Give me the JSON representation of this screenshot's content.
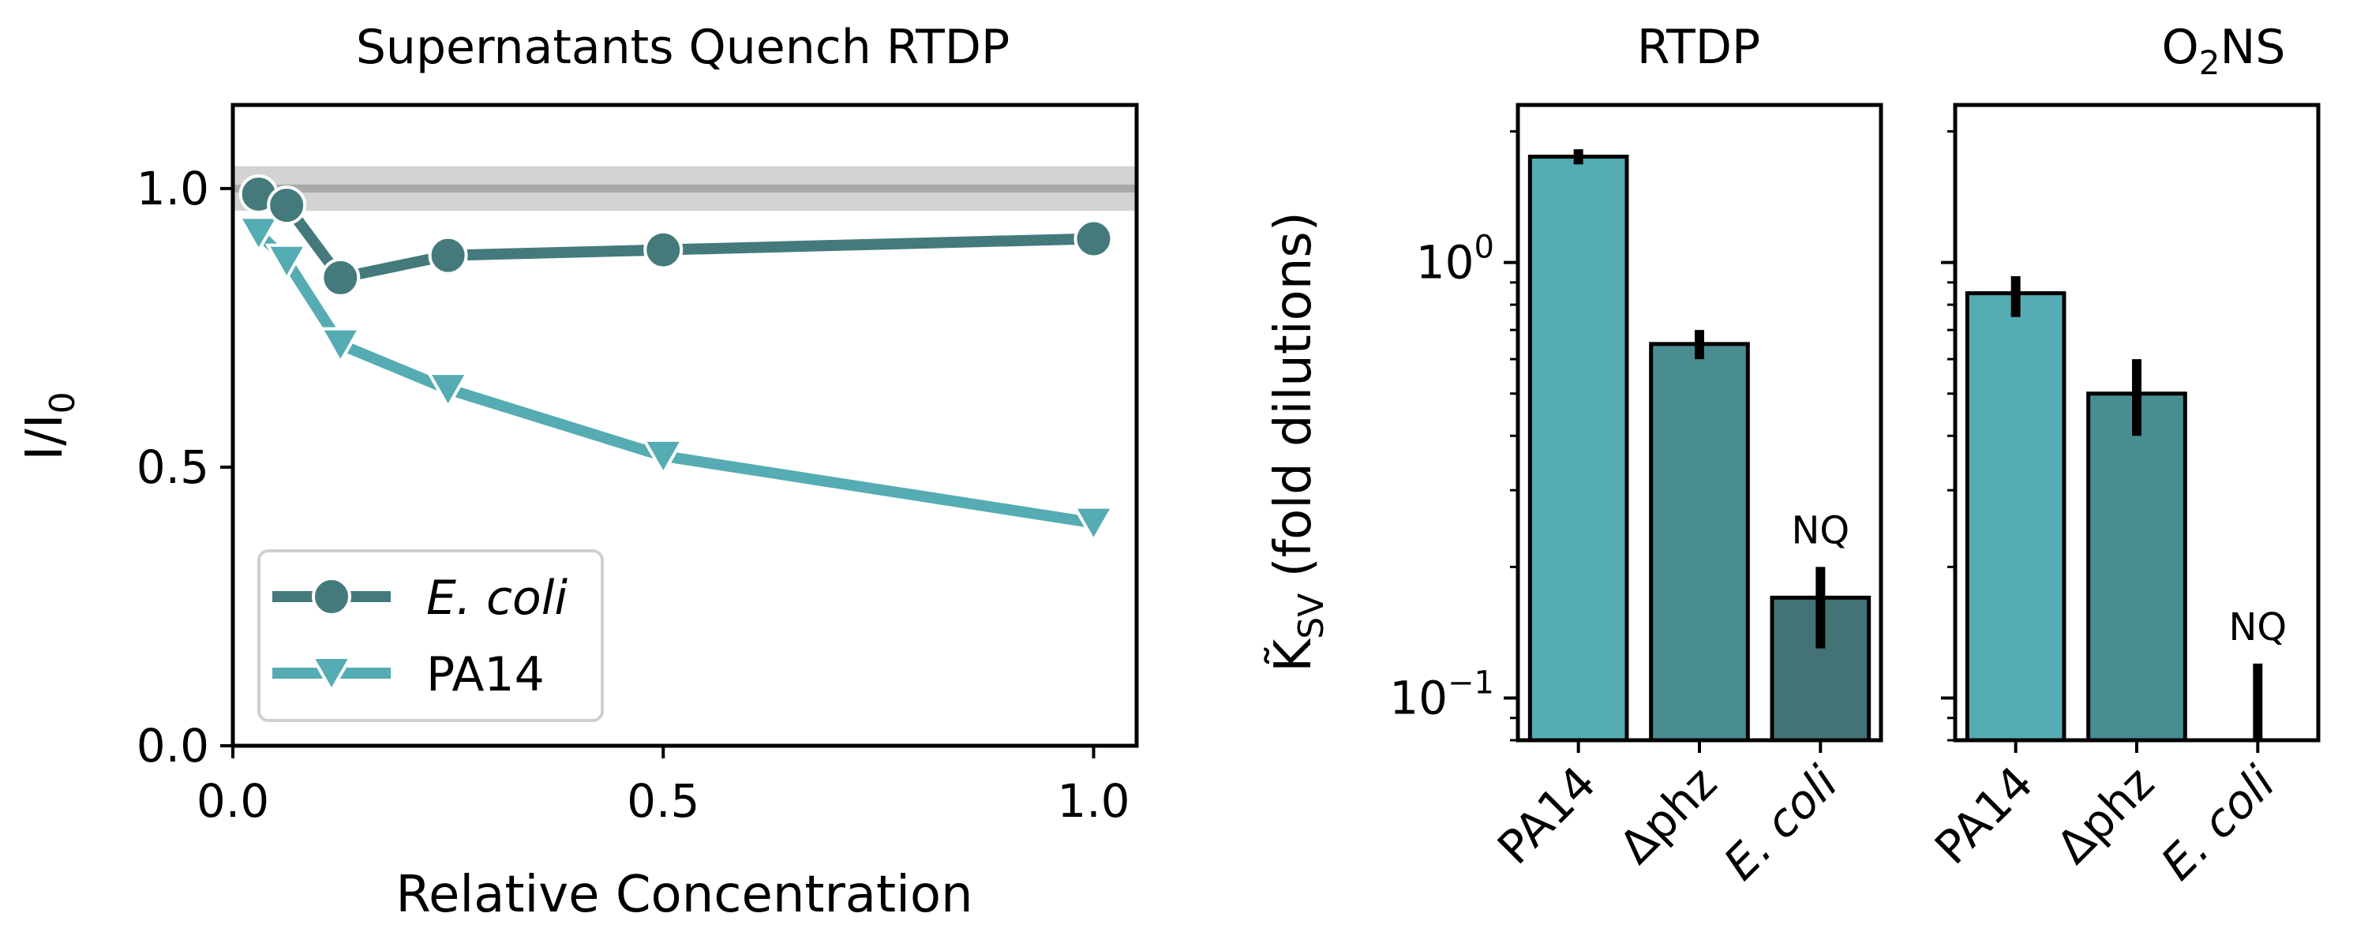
{
  "colors": {
    "ecoli_line": "#447a7c",
    "pa14_line": "#55acb2",
    "bar_pa14": "#55acb2",
    "bar_dphz": "#4a8d91",
    "bar_ecoli": "#437375",
    "reference_band": "#d3d3d3",
    "reference_line": "#a9a9a9"
  },
  "chart_data": [
    {
      "type": "line",
      "title": "Supernatants Quench RTDP",
      "xlabel": "Relative Concentration",
      "ylabel": "I/I",
      "ylabel_sub": "0",
      "xlim": [
        0.0,
        1.05
      ],
      "ylim": [
        0.0,
        1.15
      ],
      "xticks": [
        "0.0",
        "0.5",
        "1.0"
      ],
      "yticks": [
        "0.0",
        "0.5",
        "1.0"
      ],
      "grid": false,
      "reference_band": {
        "center": 1.0,
        "lower": 0.96,
        "upper": 1.04
      },
      "legend_position": "lower-left",
      "series": [
        {
          "name": "E. coli",
          "name_italic": true,
          "marker": "circle",
          "color_key": "ecoli_line",
          "x": [
            0.03,
            0.0625,
            0.125,
            0.25,
            0.5,
            1.0
          ],
          "y": [
            0.99,
            0.97,
            0.84,
            0.88,
            0.89,
            0.91
          ]
        },
        {
          "name": "PA14",
          "marker": "triangle-down",
          "color_key": "pa14_line",
          "x": [
            0.03,
            0.0625,
            0.125,
            0.25,
            0.5,
            1.0
          ],
          "y": [
            0.92,
            0.87,
            0.72,
            0.64,
            0.52,
            0.4
          ]
        }
      ]
    },
    {
      "type": "bar",
      "title": "RTDP",
      "ylabel": "K̃",
      "ylabel_sub": "SV",
      "ylabel_rest": " (fold dilutions)",
      "yscale": "log",
      "ylim": [
        0.08,
        2.3
      ],
      "ytick_labels": [
        {
          "mantissa": "10",
          "exponent": "0",
          "value": 1.0
        },
        {
          "mantissa": "10",
          "exponent": "−1",
          "value": 0.1
        }
      ],
      "categories": [
        "PA14",
        "Δphz",
        "E. coli"
      ],
      "values": [
        1.75,
        0.65,
        0.17
      ],
      "errors": [
        [
          1.68,
          1.82
        ],
        [
          0.6,
          0.7
        ],
        [
          0.13,
          0.2
        ]
      ],
      "annotations": [
        {
          "category": "E. coli",
          "text": "NQ"
        }
      ]
    },
    {
      "type": "bar",
      "title": "O",
      "title_sub": "2",
      "title_rest": "NS",
      "yscale": "log",
      "ylim": [
        0.08,
        2.3
      ],
      "categories": [
        "PA14",
        "Δphz",
        "E. coli"
      ],
      "values": [
        0.85,
        0.5,
        null
      ],
      "errors": [
        [
          0.75,
          0.93
        ],
        [
          0.4,
          0.6
        ],
        [
          0.08,
          0.12
        ]
      ],
      "annotations": [
        {
          "category": "E. coli",
          "text": "NQ"
        }
      ]
    }
  ]
}
